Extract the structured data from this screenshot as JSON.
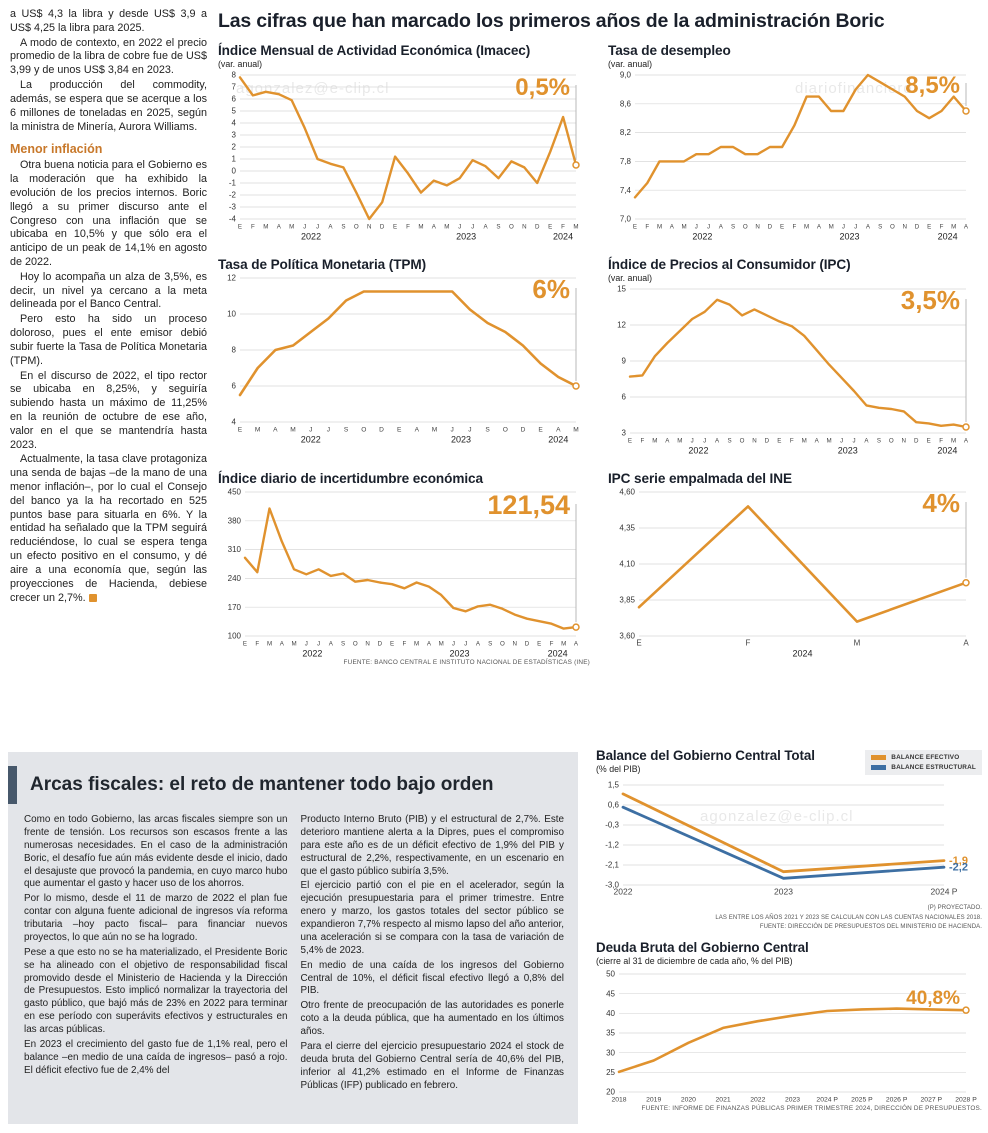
{
  "colors": {
    "accent": "#E0922E",
    "blue": "#3D6FA3",
    "title": "#1A202B",
    "panel": "#E3E5E9",
    "headbar": "#47586B"
  },
  "watermarks": [
    "agonzalez@e-clip.cl",
    "diariofinanciero",
    "agonzalez@e-clip.cl"
  ],
  "left_column": {
    "paragraphs": [
      "a US$ 4,3 la libra y desde US$ 3,9 a US$ 4,25 la libra para 2025.",
      "A modo de contexto, en 2022 el precio promedio de la libra de cobre fue de US$ 3,99 y de unos US$ 3,84 en 2023.",
      "La producción del commodity, además, se espera que se acerque a los 6 millones de toneladas en 2025, según la ministra de Minería, Aurora Williams."
    ],
    "subhead": "Menor inflación",
    "paragraphs2": [
      "Otra buena noticia para el Gobierno es la moderación que ha exhibido la evolución de los precios internos. Boric llegó a su primer discurso ante el Congreso con una inflación que se ubicaba en 10,5% y que sólo era el anticipo de un peak de 14,1% en agosto de 2022.",
      "Hoy lo acompaña un alza de 3,5%, es decir, un nivel ya cercano a la meta delineada por el Banco Central.",
      "Pero esto ha sido un proceso doloroso, pues el ente emisor debió subir fuerte la Tasa de Política Monetaria (TPM).",
      "En el discurso de 2022, el tipo rector se ubicaba en 8,25%, y seguiría subiendo hasta un máximo de 11,25% en la reunión de octubre de ese año, valor en el que se mantendría hasta 2023.",
      "Actualmente, la tasa clave protagoniza una senda de bajas –de la mano de una menor inflación–, por lo cual el Consejo del banco ya la ha recortado en 525 puntos base para situarla en 6%. Y la entidad ha señalado que la TPM seguirá reduciéndose, lo cual se espera tenga un efecto positivo en el consumo, y dé aire a una economía que, según las proyecciones de Hacienda, debiese crecer un 2,7%."
    ]
  },
  "main": {
    "title": "Las cifras que han marcado los primeros años de la administración Boric"
  },
  "bottom": {
    "header": "Arcas fiscales: el reto de mantener todo bajo orden",
    "col1": [
      "Como en todo Gobierno, las arcas fiscales siempre son un frente de tensión. Los recursos son escasos frente a las numerosas necesidades. En el caso de la administración Boric, el desafío fue aún más evidente desde el inicio, dado el desajuste que provocó la pandemia, en cuyo marco hubo que aumentar el gasto y hacer uso de los ahorros.",
      "Por lo mismo, desde el 11 de marzo de 2022 el plan fue contar con alguna fuente adicional de ingresos vía reforma tributaria –hoy pacto fiscal– para financiar nuevos proyectos, lo que aún no se ha logrado.",
      "Pese a que esto no se ha materializado, el Presidente Boric se ha alineado con el objetivo de responsabilidad fiscal promovido desde el Ministerio de Hacienda y la Dirección de Presupuestos. Esto implicó normalizar la trayectoria del gasto público, que bajó más de 23% en 2022 para terminar en ese período con superávits efectivos y estructurales en las arcas públicas.",
      "En 2023 el crecimiento del gasto fue de 1,1% real, pero el balance –en medio de una caída de ingresos– pasó a rojo. El déficit efectivo fue de 2,4% del"
    ],
    "col2": [
      "Producto Interno Bruto (PIB) y el estructural de 2,7%. Este deterioro mantiene alerta a la Dipres, pues el compromiso para este año es de un déficit efectivo de 1,9% del PIB y estructural de 2,2%, respectivamente, en un escenario en que el gasto público subiría 3,5%.",
      "El ejercicio partió con el pie en el acelerador, según la ejecución presupuestaria para el primer trimestre. Entre enero y marzo, los gastos totales del sector público se expandieron 7,7% respecto al mismo lapso del año anterior, una aceleración si se compara con la tasa de variación de 5,4% de 2023.",
      "En medio de una caída de los ingresos del Gobierno Central de 10%, el déficit fiscal efectivo llegó a 0,8% del PIB.",
      "Otro frente de preocupación de las autoridades es ponerle coto a la deuda pública, que ha aumentado en los últimos años.",
      "Para el cierre del ejercicio presupuestario 2024 el stock de deuda bruta del Gobierno Central sería de 40,6% del PIB, inferior al 41,2% estimado en el Informe de Finanzas Públicas (IFP) publicado en febrero."
    ]
  },
  "chart_data": [
    {
      "type": "line",
      "title": "Índice Mensual de Actividad Económica (Imacec)",
      "subtitle": "(var. anual)",
      "highlight": "0,5%",
      "ylim": [
        -4,
        8
      ],
      "yticks": [
        8,
        7,
        6,
        5,
        4,
        3,
        2,
        1,
        0,
        -1,
        -2,
        -3,
        -4
      ],
      "xlabels": [
        "E",
        "F",
        "M",
        "A",
        "M",
        "J",
        "J",
        "A",
        "S",
        "O",
        "N",
        "D",
        "E",
        "F",
        "M",
        "A",
        "M",
        "J",
        "J",
        "A",
        "S",
        "O",
        "N",
        "D",
        "E",
        "F",
        "M"
      ],
      "years": [
        {
          "label": "2022",
          "from": 0,
          "to": 11
        },
        {
          "label": "2023",
          "from": 12,
          "to": 23
        },
        {
          "label": "2024",
          "from": 24,
          "to": 26
        }
      ],
      "values": [
        7.8,
        6.3,
        6.6,
        6.4,
        5.9,
        3.6,
        1.0,
        0.6,
        0.3,
        -1.8,
        -4.0,
        -2.6,
        1.2,
        -0.2,
        -1.8,
        -0.8,
        -1.2,
        -0.6,
        0.9,
        0.4,
        -0.6,
        0.8,
        0.3,
        -1.0,
        1.6,
        4.5,
        0.5
      ]
    },
    {
      "type": "line",
      "title": "Tasa de desempleo",
      "subtitle": "(var. anual)",
      "highlight": "8,5%",
      "ylim": [
        7.0,
        9.0
      ],
      "yticks": [
        "9,0",
        "8,6",
        "8,2",
        "7,8",
        "7,4",
        "7,0"
      ],
      "xlabels": [
        "E",
        "F",
        "M",
        "A",
        "M",
        "J",
        "J",
        "A",
        "S",
        "O",
        "N",
        "D",
        "E",
        "F",
        "M",
        "A",
        "M",
        "J",
        "J",
        "A",
        "S",
        "O",
        "N",
        "D",
        "E",
        "F",
        "M",
        "A"
      ],
      "years": [
        {
          "label": "2022",
          "from": 0,
          "to": 11
        },
        {
          "label": "2023",
          "from": 12,
          "to": 23
        },
        {
          "label": "2024",
          "from": 24,
          "to": 27
        }
      ],
      "values": [
        7.3,
        7.5,
        7.8,
        7.8,
        7.8,
        7.9,
        7.9,
        8.0,
        8.0,
        7.9,
        7.9,
        8.0,
        8.0,
        8.3,
        8.7,
        8.7,
        8.5,
        8.5,
        8.8,
        9.0,
        8.9,
        8.8,
        8.7,
        8.5,
        8.4,
        8.5,
        8.7,
        8.5
      ]
    },
    {
      "type": "line",
      "title": "Tasa de Política Monetaria (TPM)",
      "highlight": "6%",
      "ylim": [
        4,
        12
      ],
      "yticks": [
        12,
        10,
        8,
        6,
        4
      ],
      "xlabels": [
        "E",
        "M",
        "A",
        "M",
        "J",
        "J",
        "S",
        "O",
        "D",
        "E",
        "A",
        "M",
        "J",
        "J",
        "S",
        "O",
        "D",
        "E",
        "A",
        "M"
      ],
      "years": [
        {
          "label": "2022",
          "from": 0,
          "to": 8
        },
        {
          "label": "2023",
          "from": 9,
          "to": 16
        },
        {
          "label": "2024",
          "from": 17,
          "to": 19
        }
      ],
      "values": [
        5.5,
        7.0,
        8.0,
        8.25,
        9.0,
        9.75,
        10.75,
        11.25,
        11.25,
        11.25,
        11.25,
        11.25,
        11.25,
        10.25,
        9.5,
        9.0,
        8.25,
        7.25,
        6.5,
        6.0
      ]
    },
    {
      "type": "line",
      "title": "Índice de Precios al Consumidor (IPC)",
      "subtitle": "(var. anual)",
      "highlight": "3,5%",
      "ylim": [
        3,
        15
      ],
      "yticks": [
        15,
        12,
        9,
        6,
        3
      ],
      "xlabels": [
        "E",
        "F",
        "M",
        "A",
        "M",
        "J",
        "J",
        "A",
        "S",
        "O",
        "N",
        "D",
        "E",
        "F",
        "M",
        "A",
        "M",
        "J",
        "J",
        "A",
        "S",
        "O",
        "N",
        "D",
        "E",
        "F",
        "M",
        "A"
      ],
      "years": [
        {
          "label": "2022",
          "from": 0,
          "to": 11
        },
        {
          "label": "2023",
          "from": 12,
          "to": 23
        },
        {
          "label": "2024",
          "from": 24,
          "to": 27
        }
      ],
      "values": [
        7.7,
        7.8,
        9.4,
        10.5,
        11.5,
        12.5,
        13.1,
        14.1,
        13.7,
        12.8,
        13.3,
        12.8,
        12.3,
        11.9,
        11.1,
        9.9,
        8.7,
        7.6,
        6.5,
        5.3,
        5.1,
        5.0,
        4.8,
        3.9,
        3.8,
        3.6,
        3.7,
        3.5
      ]
    },
    {
      "type": "line",
      "title": "Índice diario de incertidumbre económica",
      "highlight": "121,54",
      "ylim": [
        100,
        450
      ],
      "yticks": [
        450,
        380,
        310,
        240,
        170,
        100
      ],
      "xlabels": [
        "E",
        "F",
        "M",
        "A",
        "M",
        "J",
        "J",
        "A",
        "S",
        "O",
        "N",
        "D",
        "E",
        "F",
        "M",
        "A",
        "M",
        "J",
        "J",
        "A",
        "S",
        "O",
        "N",
        "D",
        "E",
        "F",
        "M",
        "A"
      ],
      "years": [
        {
          "label": "2022",
          "from": 0,
          "to": 11
        },
        {
          "label": "2023",
          "from": 12,
          "to": 23
        },
        {
          "label": "2024",
          "from": 24,
          "to": 27
        }
      ],
      "values": [
        290,
        255,
        410,
        330,
        262,
        250,
        262,
        246,
        252,
        232,
        236,
        230,
        226,
        216,
        230,
        220,
        200,
        168,
        160,
        172,
        176,
        166,
        152,
        142,
        136,
        130,
        118,
        121.54
      ],
      "source": "FUENTE: BANCO CENTRAL E INSTITUTO NACIONAL DE ESTADÍSTICAS (INE)"
    },
    {
      "type": "line",
      "title": "IPC serie empalmada del INE",
      "highlight": "4%",
      "ylim": [
        3.6,
        4.6
      ],
      "yticks": [
        "4,60",
        "4,35",
        "4,10",
        "3,85",
        "3,60"
      ],
      "xlabels": [
        "E",
        "F",
        "M",
        "A"
      ],
      "years": [
        {
          "label": "2024",
          "from": 0,
          "to": 3
        }
      ],
      "values": [
        3.8,
        4.5,
        3.7,
        3.97
      ]
    },
    {
      "type": "line",
      "title": "Balance del Gobierno Central Total",
      "subtitle": "(% del PIB)",
      "ylim": [
        -3.0,
        1.5
      ],
      "yticks": [
        "1,5",
        "0,6",
        "-0,3",
        "-1,2",
        "-2,1",
        "-3,0"
      ],
      "xlabels": [
        "2022",
        "2023",
        "2024 P"
      ],
      "series": [
        {
          "name": "BALANCE EFECTIVO",
          "colorkey": "accent",
          "values": [
            1.1,
            -2.4,
            -1.9
          ],
          "end_label": "-1,9"
        },
        {
          "name": "BALANCE ESTRUCTURAL",
          "colorkey": "blue",
          "values": [
            0.5,
            -2.7,
            -2.2
          ],
          "end_label": "-2,2"
        }
      ],
      "notes": [
        "(P) PROYECTADO.",
        "LAS ENTRE LOS AÑOS 2021 Y 2023 SE CALCULAN CON LAS CUENTAS NACIONALES 2018.",
        "FUENTE: DIRECCIÓN DE PRESUPUESTOS DEL MINISTERIO DE HACIENDA."
      ]
    },
    {
      "type": "line",
      "title": "Deuda Bruta del Gobierno Central",
      "subtitle": "(cierre al 31 de diciembre de cada año, % del PIB)",
      "highlight": "40,8%",
      "ylim": [
        20,
        50
      ],
      "yticks": [
        50,
        45,
        40,
        35,
        30,
        25,
        20
      ],
      "xlabels": [
        "2018",
        "2019",
        "2020",
        "2021",
        "2022",
        "2023",
        "2024 P",
        "2025 P",
        "2026 P",
        "2027 P",
        "2028 P"
      ],
      "values": [
        25.1,
        28.0,
        32.5,
        36.3,
        38.0,
        39.4,
        40.6,
        41.0,
        41.2,
        41.0,
        40.8
      ],
      "source": "FUENTE: INFORME DE FINANZAS PÚBLICAS PRIMER TRIMESTRE 2024, DIRECCIÓN DE PRESUPUESTOS."
    }
  ]
}
